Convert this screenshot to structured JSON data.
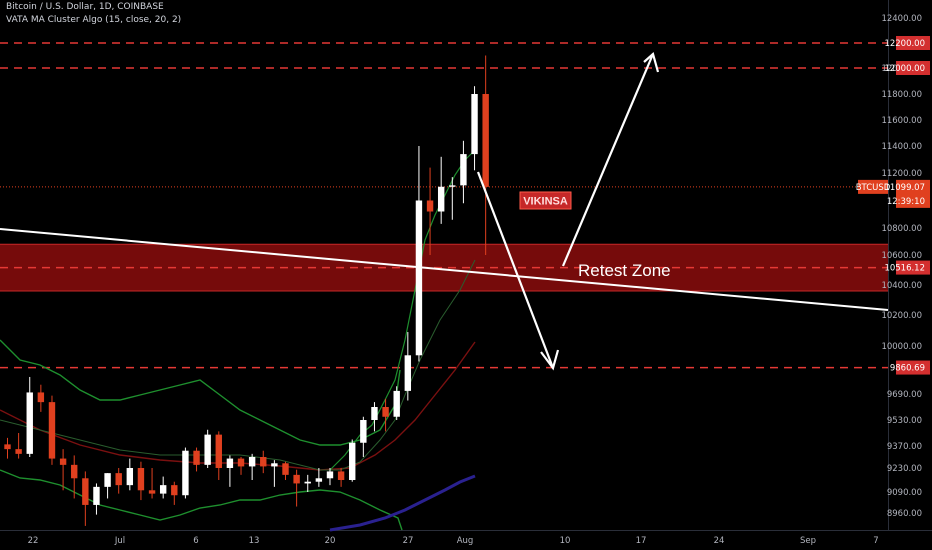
{
  "header": {
    "symbol_line": "Bitcoin / U.S. Dollar, 1D, COINBASE",
    "indicator_line": "VATA MA Cluster Algo (15, close, 20, 2)"
  },
  "colors": {
    "background": "#000000",
    "up_candle": "#ffffff",
    "down_candle": "#e0401f",
    "level_line": "#e53935",
    "zone_fill": "#8b0d0d",
    "ma_fast": "#1e8f2e",
    "ma_mid": "#7a1010",
    "ma_long": "#2a2190",
    "trendline": "#ffffff"
  },
  "chart_data": {
    "type": "candlestick",
    "title": "Bitcoin / U.S. Dollar, 1D, COINBASE",
    "y_axis": {
      "ylim": [
        8880,
        12500
      ],
      "ticks": [
        "12400.00",
        "12000.00",
        "11800.00",
        "11600.00",
        "11400.00",
        "11200.00",
        "10800.00",
        "10600.00",
        "10400.00",
        "10200.00",
        "10000.00",
        "9690.00",
        "9530.00",
        "9370.00",
        "9230.00",
        "9090.00",
        "8960.00"
      ]
    },
    "x_axis": {
      "ticks": [
        "22",
        "Jul",
        "6",
        "13",
        "20",
        "27",
        "Aug",
        "10",
        "17",
        "24",
        "Sep",
        "7"
      ]
    },
    "candles": [
      {
        "date": "Jun 20",
        "o": 9380,
        "h": 9420,
        "c": 9350,
        "l": 9290
      },
      {
        "date": "Jun 21",
        "o": 9350,
        "h": 9450,
        "c": 9320,
        "l": 9290
      },
      {
        "date": "Jun 22",
        "o": 9320,
        "h": 9800,
        "c": 9700,
        "l": 9300
      },
      {
        "date": "Jun 23",
        "o": 9700,
        "h": 9750,
        "c": 9640,
        "l": 9580
      },
      {
        "date": "Jun 24",
        "o": 9640,
        "h": 9680,
        "c": 9290,
        "l": 9250
      },
      {
        "date": "Jun 25",
        "o": 9290,
        "h": 9350,
        "c": 9250,
        "l": 9100
      },
      {
        "date": "Jun 26",
        "o": 9250,
        "h": 9310,
        "c": 9170,
        "l": 9050
      },
      {
        "date": "Jun 27",
        "o": 9170,
        "h": 9210,
        "c": 9010,
        "l": 8880
      },
      {
        "date": "Jun 28",
        "o": 9010,
        "h": 9140,
        "c": 9120,
        "l": 8950
      },
      {
        "date": "Jun 29",
        "o": 9120,
        "h": 9200,
        "c": 9200,
        "l": 9050
      },
      {
        "date": "Jun 30",
        "o": 9200,
        "h": 9230,
        "c": 9130,
        "l": 9080
      },
      {
        "date": "Jul 1",
        "o": 9130,
        "h": 9290,
        "c": 9230,
        "l": 9100
      },
      {
        "date": "Jul 2",
        "o": 9230,
        "h": 9270,
        "c": 9100,
        "l": 9040
      },
      {
        "date": "Jul 3",
        "o": 9100,
        "h": 9230,
        "c": 9080,
        "l": 9050
      },
      {
        "date": "Jul 4",
        "o": 9080,
        "h": 9180,
        "c": 9130,
        "l": 9050
      },
      {
        "date": "Jul 5",
        "o": 9130,
        "h": 9150,
        "c": 9070,
        "l": 9010
      },
      {
        "date": "Jul 6",
        "o": 9070,
        "h": 9360,
        "c": 9340,
        "l": 9050
      },
      {
        "date": "Jul 7",
        "o": 9340,
        "h": 9360,
        "c": 9250,
        "l": 9210
      },
      {
        "date": "Jul 8",
        "o": 9250,
        "h": 9470,
        "c": 9440,
        "l": 9230
      },
      {
        "date": "Jul 9",
        "o": 9440,
        "h": 9460,
        "c": 9230,
        "l": 9160
      },
      {
        "date": "Jul 10",
        "o": 9230,
        "h": 9310,
        "c": 9290,
        "l": 9120
      },
      {
        "date": "Jul 11",
        "o": 9290,
        "h": 9300,
        "c": 9240,
        "l": 9190
      },
      {
        "date": "Jul 12",
        "o": 9240,
        "h": 9320,
        "c": 9300,
        "l": 9160
      },
      {
        "date": "Jul 13",
        "o": 9300,
        "h": 9340,
        "c": 9240,
        "l": 9200
      },
      {
        "date": "Jul 14",
        "o": 9240,
        "h": 9280,
        "c": 9260,
        "l": 9120
      },
      {
        "date": "Jul 15",
        "o": 9260,
        "h": 9270,
        "c": 9190,
        "l": 9160
      },
      {
        "date": "Jul 16",
        "o": 9190,
        "h": 9220,
        "c": 9140,
        "l": 9000
      },
      {
        "date": "Jul 17",
        "o": 9140,
        "h": 9190,
        "c": 9150,
        "l": 9090
      },
      {
        "date": "Jul 18",
        "o": 9150,
        "h": 9230,
        "c": 9170,
        "l": 9120
      },
      {
        "date": "Jul 19",
        "o": 9170,
        "h": 9230,
        "c": 9210,
        "l": 9130
      },
      {
        "date": "Jul 20",
        "o": 9210,
        "h": 9230,
        "c": 9160,
        "l": 9120
      },
      {
        "date": "Jul 21",
        "o": 9160,
        "h": 9410,
        "c": 9390,
        "l": 9150
      },
      {
        "date": "Jul 22",
        "o": 9390,
        "h": 9550,
        "c": 9530,
        "l": 9300
      },
      {
        "date": "Jul 23",
        "o": 9530,
        "h": 9640,
        "c": 9610,
        "l": 9460
      },
      {
        "date": "Jul 24",
        "o": 9610,
        "h": 9660,
        "c": 9550,
        "l": 9460
      },
      {
        "date": "Jul 25",
        "o": 9550,
        "h": 9740,
        "c": 9710,
        "l": 9530
      },
      {
        "date": "Jul 26",
        "o": 9710,
        "h": 10090,
        "c": 9940,
        "l": 9650
      },
      {
        "date": "Jul 27",
        "o": 9940,
        "h": 11400,
        "c": 11000,
        "l": 9900
      },
      {
        "date": "Jul 28",
        "o": 11000,
        "h": 11240,
        "c": 10920,
        "l": 10600
      },
      {
        "date": "Jul 29",
        "o": 10920,
        "h": 11320,
        "c": 11100,
        "l": 10830
      },
      {
        "date": "Jul 30",
        "o": 11100,
        "h": 11170,
        "c": 11110,
        "l": 10860
      },
      {
        "date": "Jul 31",
        "o": 11110,
        "h": 11440,
        "c": 11340,
        "l": 10980
      },
      {
        "date": "Aug 1",
        "o": 11340,
        "h": 11860,
        "c": 11800,
        "l": 11220
      },
      {
        "date": "Aug 2",
        "o": 11800,
        "h": 12100,
        "c": 11099,
        "l": 10600
      }
    ],
    "horizontal_levels": [
      {
        "value": 12200.0,
        "label": "12200.00"
      },
      {
        "value": 12000.0,
        "label": "12000.00"
      },
      {
        "value": 10516.12,
        "label": "10516.12"
      },
      {
        "value": 9860.69,
        "label": "9860.69"
      }
    ],
    "current_price": {
      "symbol": "BTCUSD",
      "value": "11099.07",
      "countdown": "12:39:10"
    },
    "retest_zone": {
      "label": "Retest Zone",
      "low": 10360,
      "high": 10680
    },
    "annotations": {
      "watermark": "VIKINSA"
    }
  }
}
